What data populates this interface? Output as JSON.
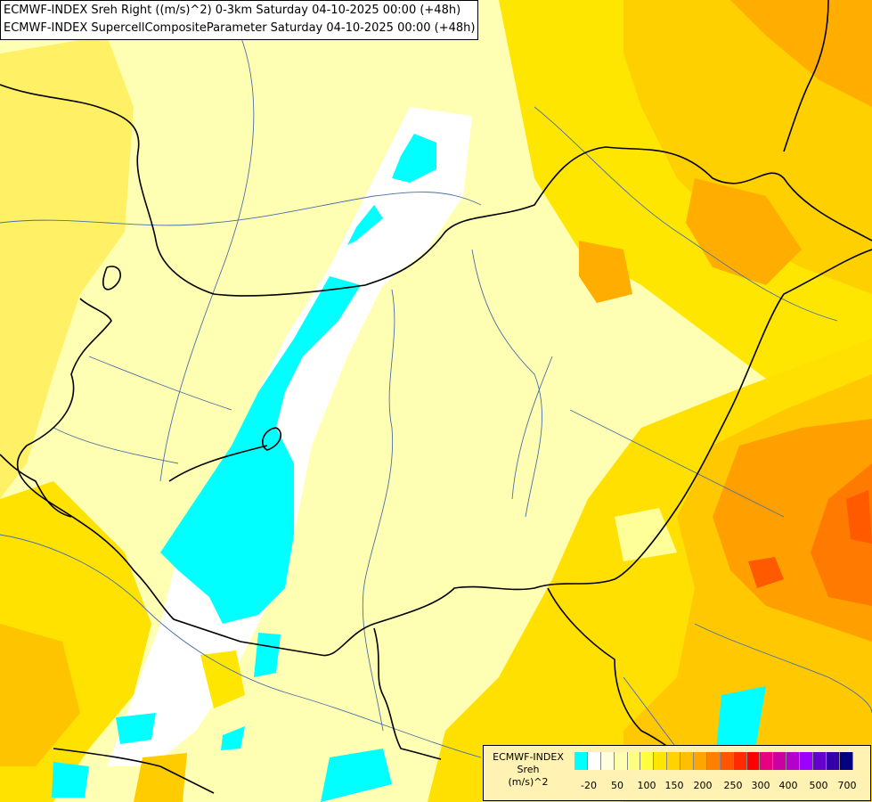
{
  "header": {
    "line1": "ECMWF-INDEX Sreh Right ((m/s)^2) 0-3km Saturday 04-10-2025 00:00 (+48h)",
    "line2": "ECMWF-INDEX SupercellCompositeParameter Saturday 04-10-2025 00:00 (+48h)"
  },
  "legend": {
    "title_lines": [
      "ECMWF-INDEX",
      "Sreh",
      "(m/s)^2"
    ],
    "colors": [
      "#00ffff",
      "#ffffff",
      "#ffffe0",
      "#ffffb0",
      "#ffff80",
      "#ffff40",
      "#ffe600",
      "#ffd200",
      "#ffbe00",
      "#ffa500",
      "#ff7f00",
      "#ff5500",
      "#ff2a00",
      "#ff0000",
      "#e6007f",
      "#cc00a0",
      "#b400cc",
      "#9900ff",
      "#6600cc",
      "#3300aa",
      "#000080"
    ],
    "labels": [
      "-20",
      "50",
      "100",
      "150",
      "200",
      "250",
      "300",
      "400",
      "500",
      "700"
    ]
  },
  "colors": {
    "cyan": "#00ffff",
    "pale_yellow": "#ffffb3",
    "light_yellow": "#ffff80",
    "yellow": "#ffee00",
    "gold": "#ffd000",
    "orange": "#ffae00",
    "dark_orange": "#ff8c00",
    "red_orange": "#ff5a00",
    "border": "#000000",
    "river": "#4a6fa5"
  }
}
